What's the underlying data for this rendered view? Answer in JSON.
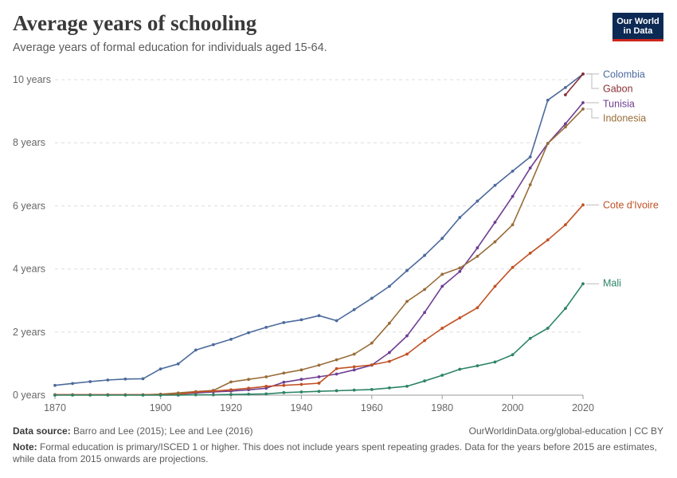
{
  "header": {
    "title": "Average years of schooling",
    "subtitle": "Average years of formal education for individuals aged 15-64.",
    "logo_line1": "Our World",
    "logo_line2": "in Data"
  },
  "footer": {
    "source_label": "Data source:",
    "source_text": "Barro and Lee (2015); Lee and Lee (2016)",
    "credit": "OurWorldinData.org/global-education | CC BY",
    "note_label": "Note:",
    "note_text": "Formal education is primary/ISCED 1 or higher. This does not include years spent repeating grades. Data for the years before 2015 are estimates, while data from 2015 onwards are projections."
  },
  "chart_data": {
    "type": "line",
    "title": "Average years of schooling",
    "subtitle": "Average years of formal education for individuals aged 15-64.",
    "xlim": [
      1870,
      2020
    ],
    "ylim": [
      0,
      10
    ],
    "x_ticks": [
      1870,
      1900,
      1920,
      1940,
      1960,
      1980,
      2000,
      2020
    ],
    "y_ticks": [
      0,
      2,
      4,
      6,
      8,
      10
    ],
    "y_tick_labels": [
      "0 years",
      "2 years",
      "4 years",
      "6 years",
      "8 years",
      "10 years"
    ],
    "grid": "horizontal dashed",
    "legend": "line labels at right",
    "series": [
      {
        "name": "Colombia",
        "color": "#4c6a9c",
        "points": [
          [
            1870,
            0.31
          ],
          [
            1875,
            0.37
          ],
          [
            1880,
            0.43
          ],
          [
            1885,
            0.48
          ],
          [
            1890,
            0.51
          ],
          [
            1895,
            0.52
          ],
          [
            1900,
            0.83
          ],
          [
            1905,
            0.99
          ],
          [
            1910,
            1.43
          ],
          [
            1915,
            1.6
          ],
          [
            1920,
            1.77
          ],
          [
            1925,
            1.98
          ],
          [
            1930,
            2.15
          ],
          [
            1935,
            2.3
          ],
          [
            1940,
            2.39
          ],
          [
            1945,
            2.52
          ],
          [
            1950,
            2.36
          ],
          [
            1955,
            2.71
          ],
          [
            1960,
            3.07
          ],
          [
            1965,
            3.45
          ],
          [
            1970,
            3.95
          ],
          [
            1975,
            4.43
          ],
          [
            1980,
            4.97
          ],
          [
            1985,
            5.63
          ],
          [
            1990,
            6.15
          ],
          [
            1995,
            6.65
          ],
          [
            2000,
            7.1
          ],
          [
            2005,
            7.55
          ],
          [
            2010,
            9.35
          ],
          [
            2015,
            9.75
          ],
          [
            2020,
            10.18
          ]
        ]
      },
      {
        "name": "Gabon",
        "color": "#883039",
        "points": [
          [
            2015,
            9.52
          ],
          [
            2020,
            10.18
          ]
        ]
      },
      {
        "name": "Tunisia",
        "color": "#6d3e91",
        "points": [
          [
            1870,
            0.01
          ],
          [
            1875,
            0.01
          ],
          [
            1880,
            0.01
          ],
          [
            1885,
            0.01
          ],
          [
            1890,
            0.01
          ],
          [
            1895,
            0.01
          ],
          [
            1900,
            0.02
          ],
          [
            1905,
            0.03
          ],
          [
            1910,
            0.07
          ],
          [
            1915,
            0.1
          ],
          [
            1920,
            0.13
          ],
          [
            1925,
            0.17
          ],
          [
            1930,
            0.22
          ],
          [
            1935,
            0.41
          ],
          [
            1940,
            0.5
          ],
          [
            1945,
            0.58
          ],
          [
            1950,
            0.67
          ],
          [
            1955,
            0.8
          ],
          [
            1960,
            0.95
          ],
          [
            1965,
            1.35
          ],
          [
            1970,
            1.88
          ],
          [
            1975,
            2.62
          ],
          [
            1980,
            3.45
          ],
          [
            1985,
            3.92
          ],
          [
            1990,
            4.67
          ],
          [
            1995,
            5.48
          ],
          [
            2000,
            6.3
          ],
          [
            2005,
            7.2
          ],
          [
            2010,
            7.98
          ],
          [
            2015,
            8.6
          ],
          [
            2020,
            9.27
          ]
        ]
      },
      {
        "name": "Indonesia",
        "color": "#996d39",
        "points": [
          [
            1870,
            0.01
          ],
          [
            1875,
            0.01
          ],
          [
            1880,
            0.01
          ],
          [
            1885,
            0.01
          ],
          [
            1890,
            0.01
          ],
          [
            1895,
            0.01
          ],
          [
            1900,
            0.03
          ],
          [
            1905,
            0.07
          ],
          [
            1910,
            0.11
          ],
          [
            1915,
            0.15
          ],
          [
            1920,
            0.42
          ],
          [
            1925,
            0.5
          ],
          [
            1930,
            0.58
          ],
          [
            1935,
            0.7
          ],
          [
            1940,
            0.8
          ],
          [
            1945,
            0.95
          ],
          [
            1950,
            1.12
          ],
          [
            1955,
            1.3
          ],
          [
            1960,
            1.65
          ],
          [
            1965,
            2.28
          ],
          [
            1970,
            2.97
          ],
          [
            1975,
            3.35
          ],
          [
            1980,
            3.83
          ],
          [
            1985,
            4.03
          ],
          [
            1990,
            4.4
          ],
          [
            1995,
            4.86
          ],
          [
            2000,
            5.4
          ],
          [
            2005,
            6.67
          ],
          [
            2010,
            7.98
          ],
          [
            2015,
            8.5
          ],
          [
            2020,
            9.07
          ]
        ]
      },
      {
        "name": "Cote d'Ivoire",
        "color": "#c15125",
        "points": [
          [
            1870,
            0.01
          ],
          [
            1875,
            0.01
          ],
          [
            1880,
            0.01
          ],
          [
            1885,
            0.01
          ],
          [
            1890,
            0.01
          ],
          [
            1895,
            0.01
          ],
          [
            1900,
            0.01
          ],
          [
            1905,
            0.02
          ],
          [
            1910,
            0.1
          ],
          [
            1915,
            0.13
          ],
          [
            1920,
            0.17
          ],
          [
            1925,
            0.22
          ],
          [
            1930,
            0.28
          ],
          [
            1935,
            0.31
          ],
          [
            1940,
            0.34
          ],
          [
            1945,
            0.38
          ],
          [
            1950,
            0.84
          ],
          [
            1955,
            0.9
          ],
          [
            1960,
            0.96
          ],
          [
            1965,
            1.07
          ],
          [
            1970,
            1.3
          ],
          [
            1975,
            1.73
          ],
          [
            1980,
            2.12
          ],
          [
            1985,
            2.45
          ],
          [
            1990,
            2.77
          ],
          [
            1995,
            3.45
          ],
          [
            2000,
            4.05
          ],
          [
            2005,
            4.5
          ],
          [
            2010,
            4.92
          ],
          [
            2015,
            5.4
          ],
          [
            2020,
            6.03
          ]
        ]
      },
      {
        "name": "Mali",
        "color": "#2c8465",
        "points": [
          [
            1870,
            0.0
          ],
          [
            1875,
            0.0
          ],
          [
            1880,
            0.0
          ],
          [
            1885,
            0.0
          ],
          [
            1890,
            0.0
          ],
          [
            1895,
            0.0
          ],
          [
            1900,
            0.0
          ],
          [
            1905,
            0.0
          ],
          [
            1910,
            0.01
          ],
          [
            1915,
            0.01
          ],
          [
            1920,
            0.02
          ],
          [
            1925,
            0.03
          ],
          [
            1930,
            0.04
          ],
          [
            1935,
            0.08
          ],
          [
            1940,
            0.1
          ],
          [
            1945,
            0.12
          ],
          [
            1950,
            0.14
          ],
          [
            1955,
            0.16
          ],
          [
            1960,
            0.18
          ],
          [
            1965,
            0.23
          ],
          [
            1970,
            0.28
          ],
          [
            1975,
            0.45
          ],
          [
            1980,
            0.63
          ],
          [
            1985,
            0.82
          ],
          [
            1990,
            0.93
          ],
          [
            1995,
            1.05
          ],
          [
            2000,
            1.28
          ],
          [
            2005,
            1.8
          ],
          [
            2010,
            2.12
          ],
          [
            2015,
            2.75
          ],
          [
            2020,
            3.53
          ]
        ]
      }
    ]
  }
}
